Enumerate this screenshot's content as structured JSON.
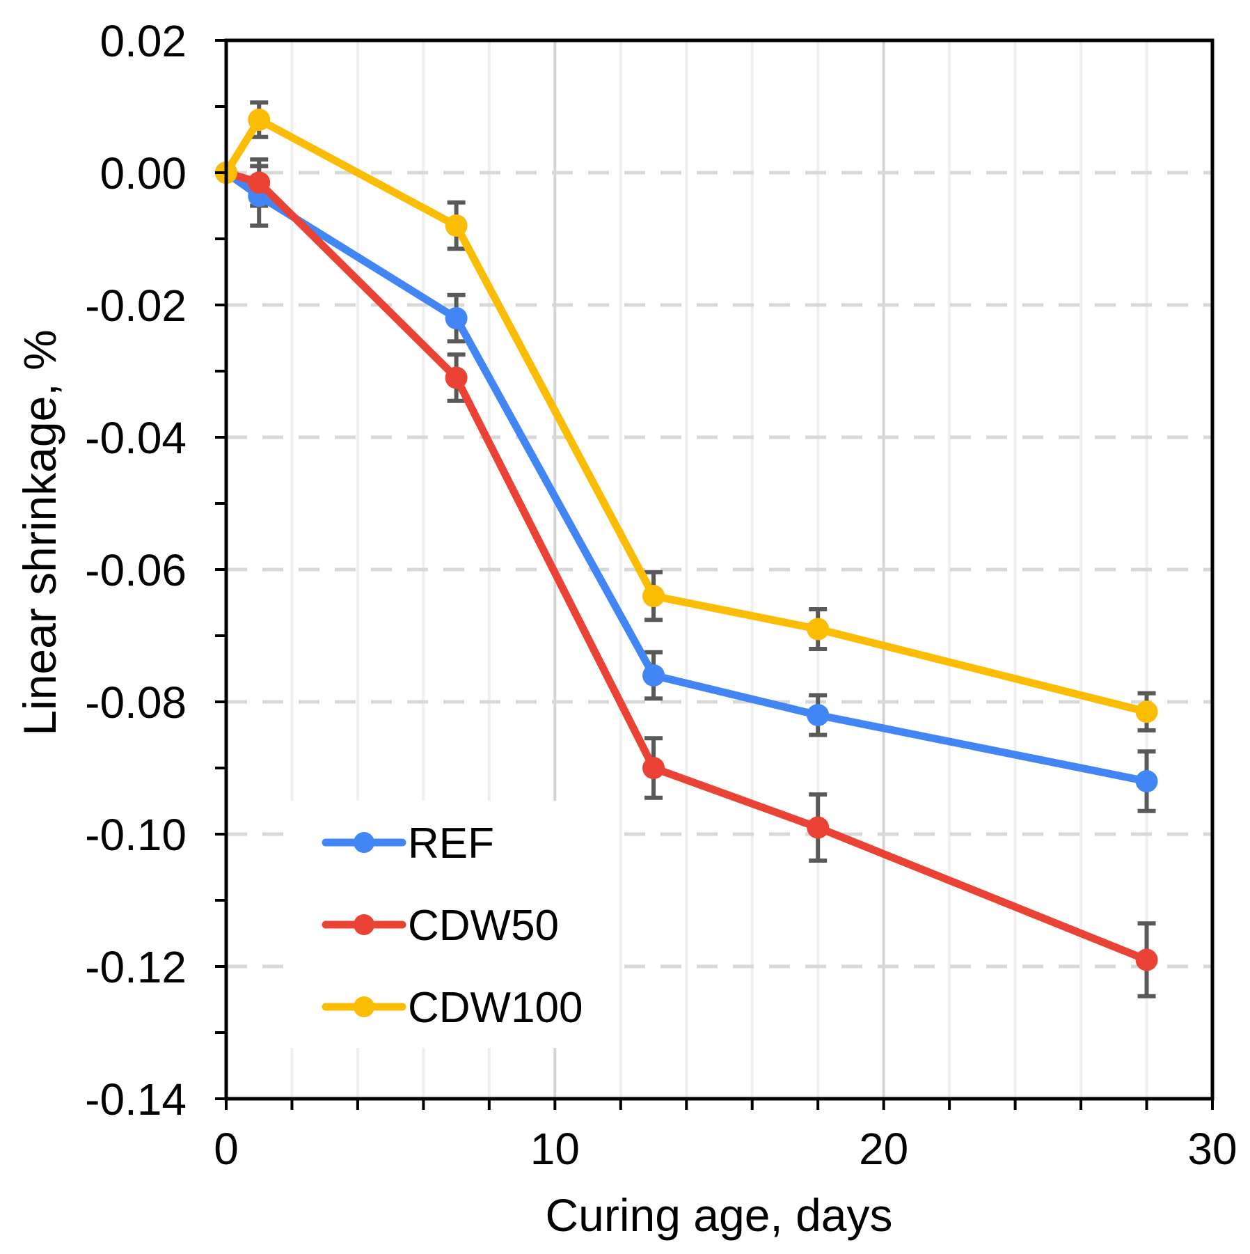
{
  "chart_data": {
    "type": "line",
    "title": "",
    "xlabel": "Curing age, days",
    "ylabel": "Linear shrinkage, %",
    "x": [
      0,
      1,
      7,
      13,
      18,
      28
    ],
    "xlim": [
      0,
      30
    ],
    "ylim": [
      -0.14,
      0.02
    ],
    "x_major_ticks": [
      0,
      10,
      20,
      30
    ],
    "x_tick_labels": [
      "0",
      "10",
      "20",
      "30"
    ],
    "x_minor_tick_step": 2,
    "y_major_tick_step": 0.02,
    "y_minor_tick_step": 0.01,
    "y_tick_labels": [
      "0.02",
      "0.00",
      "-0.02",
      "-0.04",
      "-0.06",
      "-0.08",
      "-0.10",
      "-0.12",
      "-0.14"
    ],
    "grid": {
      "horizontal_style": "dashed",
      "horizontal_color": "#d8d8d8",
      "vertical_minor_color": "#efefef",
      "vertical_major_color": "#d5d5d5"
    },
    "axis_color": "#000000",
    "error_bar_color": "#595959",
    "background": "#ffffff",
    "legend": {
      "position": "inside-bottom-left",
      "entries": [
        "REF",
        "CDW50",
        "CDW100"
      ]
    },
    "series": [
      {
        "name": "REF",
        "color": "#4285f4",
        "values": [
          0.0,
          -0.0035,
          -0.022,
          -0.076,
          -0.082,
          -0.092
        ],
        "errors": [
          0,
          0.0045,
          0.0035,
          0.0035,
          0.003,
          0.0045
        ]
      },
      {
        "name": "CDW50",
        "color": "#ea4335",
        "values": [
          0.0,
          -0.0015,
          -0.031,
          -0.09,
          -0.099,
          -0.119
        ],
        "errors": [
          0,
          0.0035,
          0.0035,
          0.0045,
          0.005,
          0.0055
        ]
      },
      {
        "name": "CDW100",
        "color": "#fbbc04",
        "values": [
          0.0,
          0.008,
          -0.008,
          -0.064,
          -0.069,
          -0.0815
        ],
        "errors": [
          0,
          0.0026,
          0.0035,
          0.0036,
          0.003,
          0.0028
        ]
      }
    ]
  }
}
